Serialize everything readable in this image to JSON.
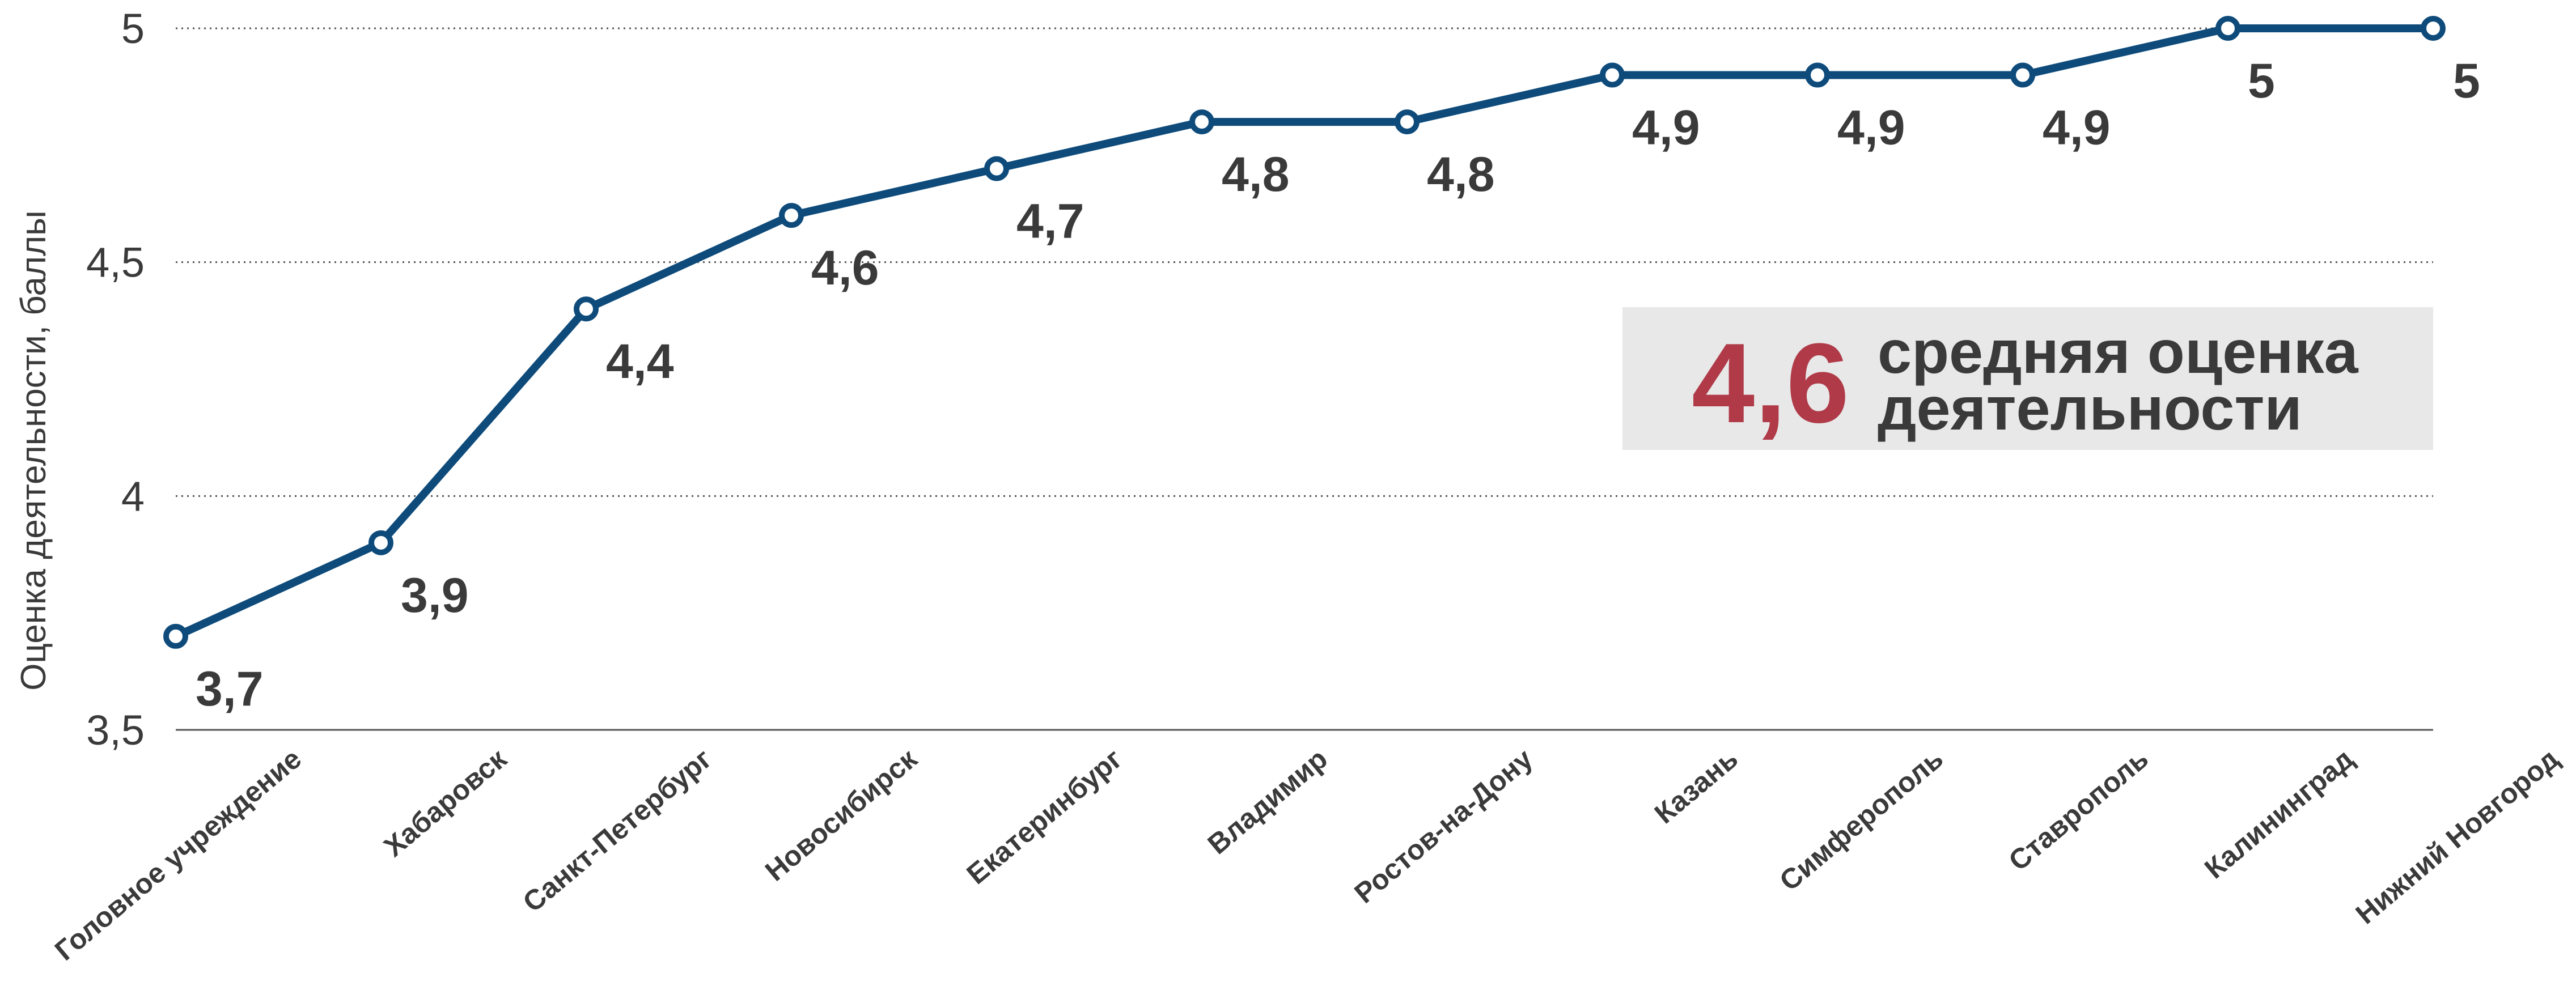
{
  "chart_data": {
    "type": "line",
    "title": "",
    "xlabel": "",
    "ylabel": "Оценка деятельности, баллы",
    "categories": [
      "Головное учреждение",
      "Хабаровск",
      "Санкт-Петербург",
      "Новосибирск",
      "Екатеринбург",
      "Владимир",
      "Ростов-на-Дону",
      "Казань",
      "Симферополь",
      "Ставрополь",
      "Калининград",
      "Нижний Новгород"
    ],
    "values": [
      3.7,
      3.9,
      4.4,
      4.6,
      4.7,
      4.8,
      4.8,
      4.9,
      4.9,
      4.9,
      5,
      5
    ],
    "data_labels": [
      "3,7",
      "3,9",
      "4,4",
      "4,6",
      "4,7",
      "4,8",
      "4,8",
      "4,9",
      "4,9",
      "4,9",
      "5",
      "5"
    ],
    "ylim": [
      3.5,
      5
    ],
    "yticks": [
      3.5,
      4,
      4.5,
      5
    ],
    "ytick_labels": [
      "3,5",
      "4",
      "4,5",
      "5"
    ],
    "grid": true,
    "legend": "none",
    "colors": {
      "line": "#0e4b7b",
      "highlight": "#b03a48"
    },
    "annotation": {
      "value": "4,6",
      "line1": "средняя оценка",
      "line2": "деятельности"
    }
  }
}
